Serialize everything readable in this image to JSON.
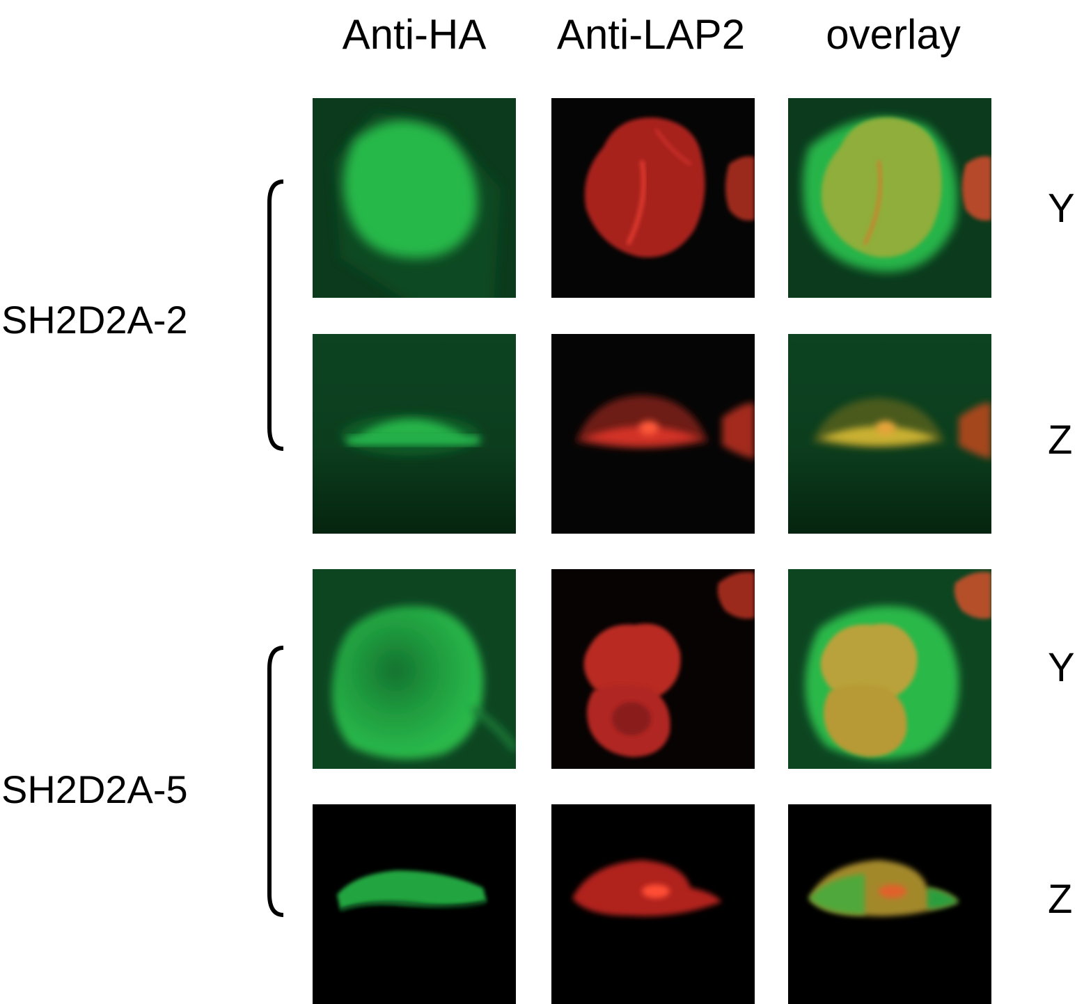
{
  "columns": [
    "Anti-HA",
    "Anti-LAP2",
    "overlay"
  ],
  "groups": [
    {
      "label": "SH2D2A-2",
      "views": [
        "Y",
        "Z"
      ]
    },
    {
      "label": "SH2D2A-5",
      "views": [
        "Y",
        "Z"
      ]
    }
  ],
  "colors": {
    "green_channel": "#1fb23f",
    "red_channel": "#d22a2a",
    "overlay_yellow": "#c9b030",
    "green_bg": "#0b3a1c",
    "black_bg": "#000000"
  }
}
